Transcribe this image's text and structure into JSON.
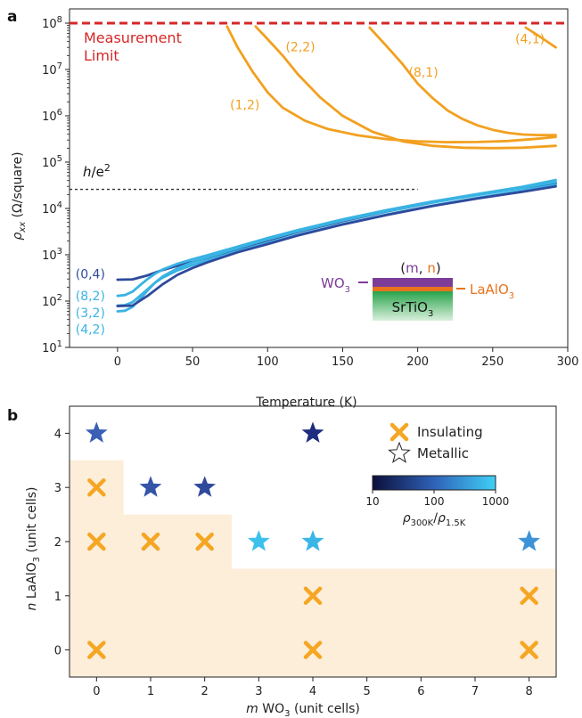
{
  "chart_data": [
    {
      "panel": "a",
      "type": "line",
      "xlabel_main": "Temperature",
      "xlabel_unit": "(K)",
      "ylabel_rho": "ρ",
      "ylabel_sub": "xx",
      "ylabel_unit": "(Ω/square)",
      "xlim": [
        -32,
        300
      ],
      "ylim": [
        10,
        100000000
      ],
      "yscale": "log",
      "xticks": [
        0,
        50,
        100,
        150,
        200,
        250,
        300
      ],
      "yticks": [
        1,
        2,
        3,
        4,
        5,
        6,
        7,
        8
      ],
      "ytick_base": "10",
      "measurement_limit": {
        "value": 100000000,
        "label_line1": "Measurement",
        "label_line2": "Limit",
        "color": "#d62728"
      },
      "quantum_resistance": {
        "value": 25800,
        "label_h": "h",
        "label_e": "/e",
        "label_exp": "2",
        "xmax": 200
      },
      "series": [
        {
          "name": "(1,2)",
          "color": "#f2a020",
          "x": [
            73,
            80,
            90,
            100,
            110,
            125,
            140,
            160,
            180,
            200,
            220,
            240,
            260,
            280,
            292
          ],
          "y": [
            85000000,
            30000000,
            9000000,
            3200000,
            1500000,
            780000,
            520000,
            380000,
            310000,
            280000,
            270000,
            272000,
            285000,
            320000,
            350000
          ]
        },
        {
          "name": "(2,2)",
          "color": "#f2a020",
          "x": [
            92,
            100,
            110,
            120,
            135,
            150,
            170,
            190,
            210,
            230,
            250,
            270,
            292
          ],
          "y": [
            85000000,
            45000000,
            20000000,
            8000000,
            2500000,
            1000000,
            450000,
            280000,
            225000,
            205000,
            200000,
            205000,
            225000
          ]
        },
        {
          "name": "(8,1)",
          "color": "#f2a020",
          "x": [
            168,
            180,
            190,
            200,
            210,
            220,
            230,
            240,
            250,
            260,
            270,
            280,
            292
          ],
          "y": [
            80000000,
            30000000,
            13000000,
            5000000,
            2400000,
            1300000,
            850000,
            620000,
            500000,
            430000,
            395000,
            385000,
            385000
          ]
        },
        {
          "name": "(4,1)",
          "color": "#f2a020",
          "x": [
            272,
            280,
            292
          ],
          "y": [
            80000000,
            55000000,
            30000000
          ]
        },
        {
          "name": "(0,4)",
          "color": "#2f4a9c",
          "x": [
            0,
            10,
            20,
            30,
            40,
            50,
            60,
            80,
            100,
            120,
            150,
            180,
            210,
            240,
            270,
            292
          ],
          "y": [
            290,
            295,
            360,
            470,
            580,
            700,
            860,
            1350,
            2050,
            3100,
            5300,
            8700,
            13500,
            20000,
            28000,
            35000
          ]
        },
        {
          "name": "(8,2)",
          "color": "#39b3e3",
          "x": [
            0,
            5,
            10,
            15,
            20,
            25,
            30,
            40,
            50,
            60,
            80,
            100,
            120,
            150,
            180,
            210,
            240,
            270,
            292
          ],
          "y": [
            80,
            82,
            95,
            130,
            180,
            250,
            320,
            460,
            600,
            760,
            1200,
            1800,
            2700,
            4600,
            7500,
            11500,
            17000,
            24500,
            32000
          ]
        },
        {
          "name": "(3,2)",
          "color": "#39b3e3",
          "x": [
            0,
            5,
            10,
            15,
            20,
            25,
            30,
            40,
            50,
            60,
            80,
            100,
            120,
            150,
            180,
            210,
            240,
            270,
            292
          ],
          "y": [
            60,
            62,
            75,
            110,
            170,
            250,
            340,
            510,
            690,
            880,
            1400,
            2150,
            3200,
            5500,
            8800,
            13500,
            19500,
            28000,
            37000
          ]
        },
        {
          "name": "(4,2)",
          "color": "#39b3e3",
          "x": [
            0,
            5,
            10,
            15,
            20,
            25,
            30,
            40,
            50,
            60,
            80,
            100,
            120,
            150,
            180,
            210,
            240,
            270,
            292
          ],
          "y": [
            130,
            135,
            160,
            220,
            300,
            390,
            480,
            640,
            800,
            980,
            1500,
            2300,
            3400,
            5800,
            9300,
            14200,
            20500,
            29500,
            41000
          ]
        },
        {
          "name": "",
          "color": "#2f4a9c",
          "x": [
            0,
            10,
            20,
            30,
            40,
            50,
            60,
            80,
            100,
            120,
            150,
            180,
            210,
            240,
            270,
            292
          ],
          "y": [
            78,
            80,
            130,
            230,
            370,
            520,
            690,
            1130,
            1700,
            2600,
            4500,
            7300,
            11300,
            16500,
            23000,
            30000
          ]
        }
      ],
      "series_labels": [
        {
          "text": "(1,2)",
          "color": "#f2a020",
          "x": 75,
          "y": 1400000
        },
        {
          "text": "(2,2)",
          "color": "#f2a020",
          "x": 112,
          "y": 25000000
        },
        {
          "text": "(8,1)",
          "color": "#f2a020",
          "x": 194,
          "y": 7000000
        },
        {
          "text": "(4,1)",
          "color": "#f2a020",
          "x": 265,
          "y": 37000000
        },
        {
          "text": "(0,4)",
          "color": "#2f4a9c",
          "x": -28,
          "y": 310
        },
        {
          "text": "(8,2)",
          "color": "#39b3e3",
          "x": -28,
          "y": 105
        },
        {
          "text": "(3,2)",
          "color": "#39b3e3",
          "x": -28,
          "y": 45
        },
        {
          "text": "(4,2)",
          "color": "#39b3e3",
          "x": -28,
          "y": 20
        }
      ],
      "inset": {
        "title_open": "(",
        "title_m": "m",
        "title_comma": ",",
        "title_n": "n",
        "title_close": ")",
        "wo3_text": "WO",
        "wo3_sub": "3",
        "lao_text": "LaAlO",
        "lao_sub": "3",
        "sto_text": "SrTiO",
        "sto_sub": "3",
        "color_m": "#7d3c98",
        "color_n": "#e8731d",
        "color_substrate_top": "#27a34a",
        "color_substrate_bottom": "#d9f0dc"
      }
    },
    {
      "panel": "b",
      "type": "scatter",
      "xlabel_var": "m",
      "xlabel_mat": "WO",
      "xlabel_sub": "3",
      "xlabel_unit": "(unit cells)",
      "ylabel_var": "n",
      "ylabel_mat": "LaAlO",
      "ylabel_sub": "3",
      "ylabel_unit": "(unit cells)",
      "x_categories": [
        "0",
        "1",
        "2",
        "3",
        "4",
        "5",
        "6",
        "7",
        "8"
      ],
      "yticks": [
        0,
        1,
        2,
        3,
        4
      ],
      "ylim": [
        -0.5,
        4.5
      ],
      "insulating_region_steps": [
        {
          "x_from": -0.5,
          "x_to": 0.5,
          "y_top": 3.5
        },
        {
          "x_from": 0.5,
          "x_to": 2.5,
          "y_top": 2.5
        },
        {
          "x_from": 2.5,
          "x_to": 8.5,
          "y_top": 1.5
        }
      ],
      "region_color": "#fdeeda",
      "insulating_color": "#f5a623",
      "insulating": [
        {
          "m": 0,
          "n": 0
        },
        {
          "m": 0,
          "n": 2
        },
        {
          "m": 0,
          "n": 3
        },
        {
          "m": 1,
          "n": 2
        },
        {
          "m": 2,
          "n": 2
        },
        {
          "m": 4,
          "n": 0
        },
        {
          "m": 4,
          "n": 1
        },
        {
          "m": 8,
          "n": 0
        },
        {
          "m": 8,
          "n": 1
        }
      ],
      "metallic": [
        {
          "m": 0,
          "n": 4,
          "ratio": 60,
          "color": "#3a5fb5"
        },
        {
          "m": 1,
          "n": 3,
          "ratio": 45,
          "color": "#3454a8"
        },
        {
          "m": 2,
          "n": 3,
          "ratio": 40,
          "color": "#2f4a9c"
        },
        {
          "m": 3,
          "n": 2,
          "ratio": 800,
          "color": "#3cc0ec"
        },
        {
          "m": 4,
          "n": 2,
          "ratio": 600,
          "color": "#3ab5e6"
        },
        {
          "m": 4,
          "n": 4,
          "ratio": 20,
          "color": "#1f2d80"
        },
        {
          "m": 8,
          "n": 2,
          "ratio": 250,
          "color": "#3e92d6"
        }
      ],
      "legend": {
        "placement": "top-right",
        "insulating_label": "Insulating",
        "metallic_label": "Metallic"
      },
      "colorbar": {
        "ticks": [
          "10",
          "100",
          "1000"
        ],
        "range": [
          10,
          1000
        ],
        "scale": "log",
        "label_rho": "ρ",
        "label_num_sub": "300K",
        "label_den_sub": "1.5K",
        "color_low": "#0b0f3a",
        "color_mid": "#2f62b8",
        "color_high": "#3fd0f5"
      }
    }
  ]
}
